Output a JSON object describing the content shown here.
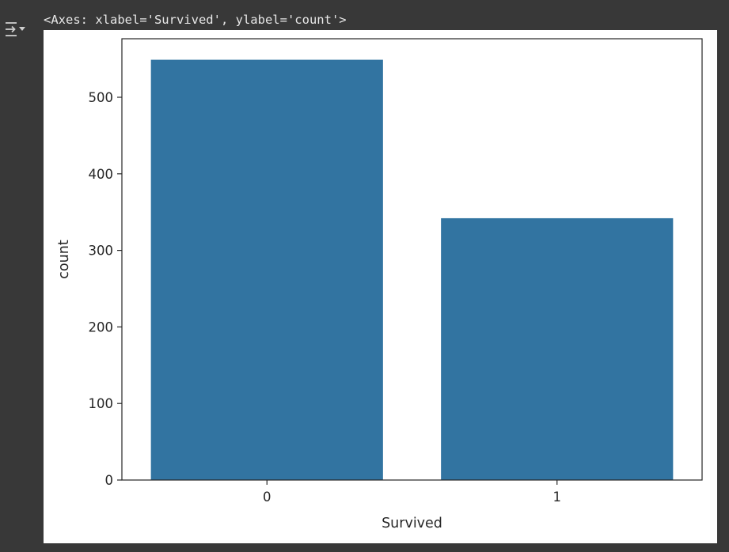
{
  "cell_output": {
    "repr_text": "<Axes: xlabel='Survived', ylabel='count'>",
    "output_toggle_icon": "output-toggle-icon"
  },
  "colors": {
    "page_background": "#383838",
    "figure_background": "#ffffff",
    "bar_fill": "#3274a1",
    "text": "#262626"
  },
  "chart_data": {
    "type": "bar",
    "categories": [
      "0",
      "1"
    ],
    "values": [
      549,
      342
    ],
    "xlabel": "Survived",
    "ylabel": "count",
    "ylim": [
      0,
      576.45
    ],
    "yticks": [
      0,
      100,
      200,
      300,
      400,
      500
    ],
    "grid": false,
    "legend": "none"
  }
}
